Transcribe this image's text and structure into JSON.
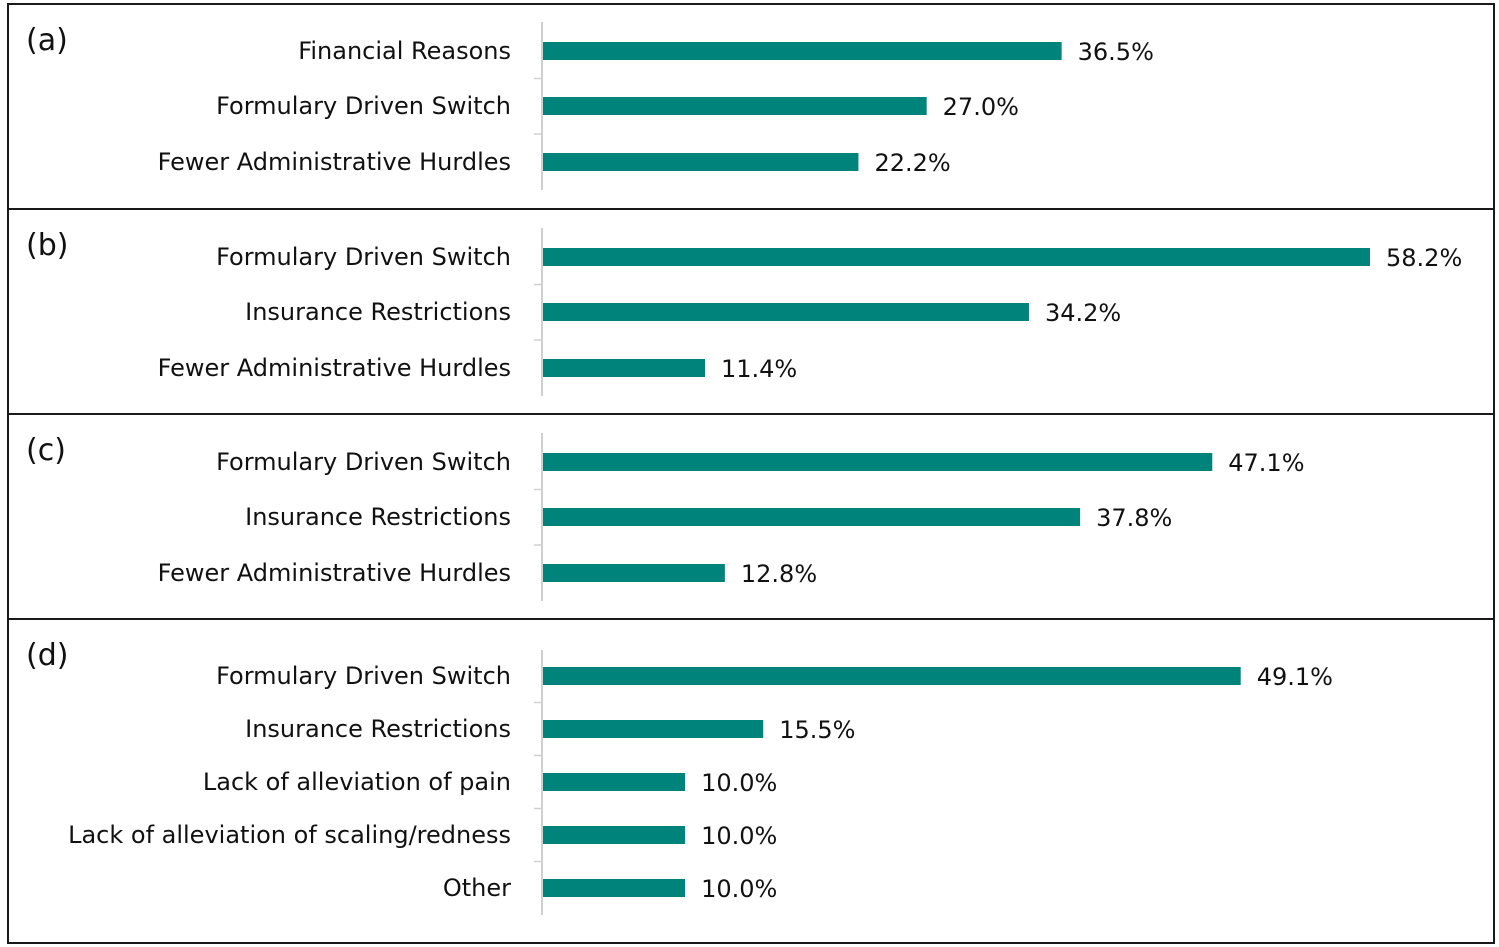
{
  "colors": {
    "bar": "#00837A",
    "frame": "#1a1a1a",
    "axis": "#d0d0d0",
    "text": "#111111"
  },
  "chart_data": [
    {
      "type": "bar",
      "orientation": "horizontal",
      "panel": "(a)",
      "categories": [
        "Financial Reasons",
        "Formulary Driven Switch",
        "Fewer Administrative Hurdles"
      ],
      "values": [
        36.5,
        27.0,
        22.2
      ],
      "value_labels": [
        "36.5%",
        "27.0%",
        "22.2%"
      ],
      "unit": "%",
      "xlim": [
        0,
        60
      ],
      "grid": false,
      "legend": "none"
    },
    {
      "type": "bar",
      "orientation": "horizontal",
      "panel": "(b)",
      "categories": [
        "Formulary Driven Switch",
        "Insurance Restrictions",
        "Fewer Administrative Hurdles"
      ],
      "values": [
        58.2,
        34.2,
        11.4
      ],
      "value_labels": [
        "58.2%",
        "34.2%",
        "11.4%"
      ],
      "unit": "%",
      "xlim": [
        0,
        60
      ],
      "grid": false,
      "legend": "none"
    },
    {
      "type": "bar",
      "orientation": "horizontal",
      "panel": "(c)",
      "categories": [
        "Formulary Driven Switch",
        "Insurance Restrictions",
        "Fewer Administrative Hurdles"
      ],
      "values": [
        47.1,
        37.8,
        12.8
      ],
      "value_labels": [
        "47.1%",
        "37.8%",
        "12.8%"
      ],
      "unit": "%",
      "xlim": [
        0,
        60
      ],
      "grid": false,
      "legend": "none"
    },
    {
      "type": "bar",
      "orientation": "horizontal",
      "panel": "(d)",
      "categories": [
        "Formulary Driven Switch",
        "Insurance Restrictions",
        "Lack of alleviation of pain",
        "Lack of alleviation of scaling/redness",
        "Other"
      ],
      "values": [
        49.1,
        15.5,
        10.0,
        10.0,
        10.0
      ],
      "value_labels": [
        "49.1%",
        "15.5%",
        "10.0%",
        "10.0%",
        "10.0%"
      ],
      "unit": "%",
      "xlim": [
        0,
        60
      ],
      "grid": false,
      "legend": "none"
    }
  ]
}
